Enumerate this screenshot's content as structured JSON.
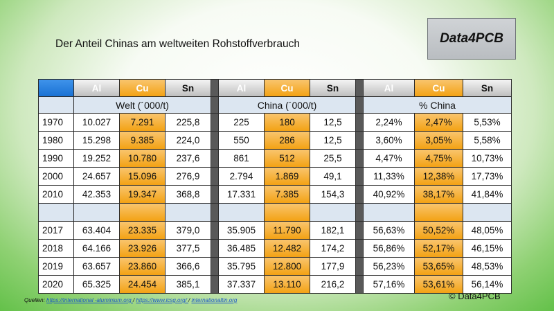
{
  "title": "Der Anteil Chinas am weltweiten Rohstoffverbrauch",
  "logo": "Data4PCB",
  "columns": [
    "Al",
    "Cu",
    "Sn"
  ],
  "sections": [
    "Welt (´000/t)",
    "China (´000/t)",
    "% China"
  ],
  "rows": [
    {
      "year": "1970",
      "welt": [
        "10.027",
        "7.291",
        "225,8"
      ],
      "china": [
        "225",
        "180",
        "12,5"
      ],
      "pct": [
        "2,24%",
        "2,47%",
        "5,53%"
      ]
    },
    {
      "year": "1980",
      "welt": [
        "15.298",
        "9.385",
        "224,0"
      ],
      "china": [
        "550",
        "286",
        "12,5"
      ],
      "pct": [
        "3,60%",
        "3,05%",
        "5,58%"
      ]
    },
    {
      "year": "1990",
      "welt": [
        "19.252",
        "10.780",
        "237,6"
      ],
      "china": [
        "861",
        "512",
        "25,5"
      ],
      "pct": [
        "4,47%",
        "4,75%",
        "10,73%"
      ]
    },
    {
      "year": "2000",
      "welt": [
        "24.657",
        "15.096",
        "276,9"
      ],
      "china": [
        "2.794",
        "1.869",
        "49,1"
      ],
      "pct": [
        "11,33%",
        "12,38%",
        "17,73%"
      ]
    },
    {
      "year": "2010",
      "welt": [
        "42.353",
        "19.347",
        "368,8"
      ],
      "china": [
        "17.331",
        "7.385",
        "154,3"
      ],
      "pct": [
        "40,92%",
        "38,17%",
        "41,84%"
      ]
    },
    {
      "year": "2017",
      "welt": [
        "63.404",
        "23.335",
        "379,0"
      ],
      "china": [
        "35.905",
        "11.790",
        "182,1"
      ],
      "pct": [
        "56,63%",
        "50,52%",
        "48,05%"
      ]
    },
    {
      "year": "2018",
      "welt": [
        "64.166",
        "23.926",
        "377,5"
      ],
      "china": [
        "36.485",
        "12.482",
        "174,2"
      ],
      "pct": [
        "56,86%",
        "52,17%",
        "46,15%"
      ]
    },
    {
      "year": "2019",
      "welt": [
        "63.657",
        "23.860",
        "366,6"
      ],
      "china": [
        "35.795",
        "12.800",
        "177,9"
      ],
      "pct": [
        "56,23%",
        "53,65%",
        "48,53%"
      ]
    },
    {
      "year": "2020",
      "welt": [
        "65.325",
        "24.454",
        "385,1"
      ],
      "china": [
        "37.337",
        "13.110",
        "216,2"
      ],
      "pct": [
        "57,16%",
        "53,61%",
        "56,14%"
      ]
    }
  ],
  "sources": {
    "label": "Quellen:",
    "links": [
      "https://international   -aluminium.org ",
      "https://www.icsg.org/ ",
      "internationaltin.org  "
    ],
    "sep": "/"
  },
  "copyright": "© Data4PCB",
  "colors": {
    "header_blue": "#1a72d4",
    "copper_orange": "#f3a214",
    "section_blue": "#dce6f1",
    "separator": "#595959"
  }
}
